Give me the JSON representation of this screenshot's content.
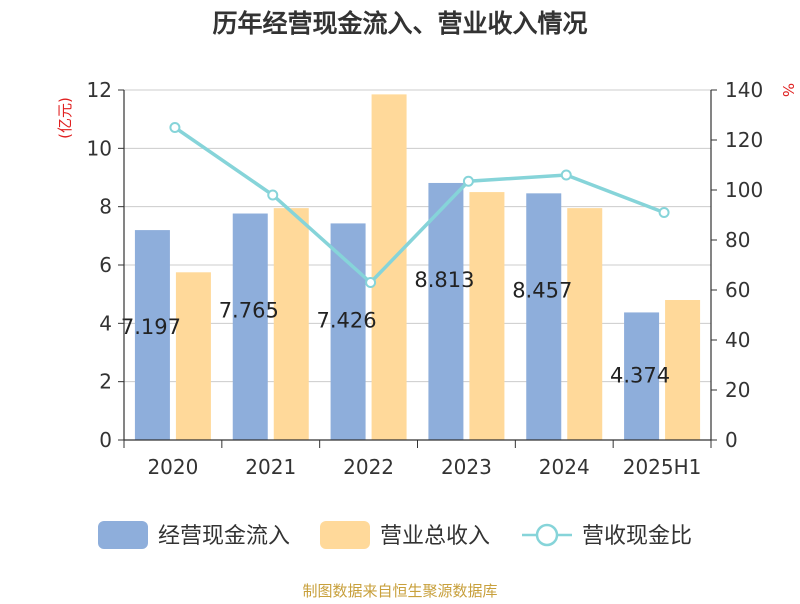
{
  "chart_data": {
    "type": "bar",
    "title": "历年经营现金流入、营业收入情况",
    "categories": [
      "2020",
      "2021",
      "2022",
      "2023",
      "2024",
      "2025H1"
    ],
    "series": [
      {
        "name": "经营现金流入",
        "type": "bar",
        "axis": "left",
        "color": "#8eaedb",
        "values": [
          7.197,
          7.765,
          7.426,
          8.813,
          8.457,
          4.374
        ]
      },
      {
        "name": "营业总收入",
        "type": "bar",
        "axis": "left",
        "color": "#ffd99a",
        "values": [
          5.75,
          7.95,
          11.85,
          8.5,
          7.95,
          4.8
        ]
      },
      {
        "name": "营收现金比",
        "type": "line",
        "axis": "right",
        "color": "#86d4d9",
        "values": [
          125,
          98,
          63,
          103.5,
          106,
          91
        ]
      }
    ],
    "data_labels": [
      "7.197",
      "7.765",
      "7.426",
      "8.813",
      "8.457",
      "4.374"
    ],
    "ylabel": "(亿元)",
    "ylabel_right": "%",
    "ylim": [
      0,
      12
    ],
    "ylim_right": [
      0,
      140
    ],
    "yticks": [
      "0",
      "2",
      "4",
      "6",
      "8",
      "10",
      "12"
    ],
    "yticks_right": [
      "0",
      "20",
      "40",
      "60",
      "80",
      "100",
      "120",
      "140"
    ],
    "grid": true,
    "legend": "bottom",
    "source": "制图数据来自恒生聚源数据库"
  }
}
